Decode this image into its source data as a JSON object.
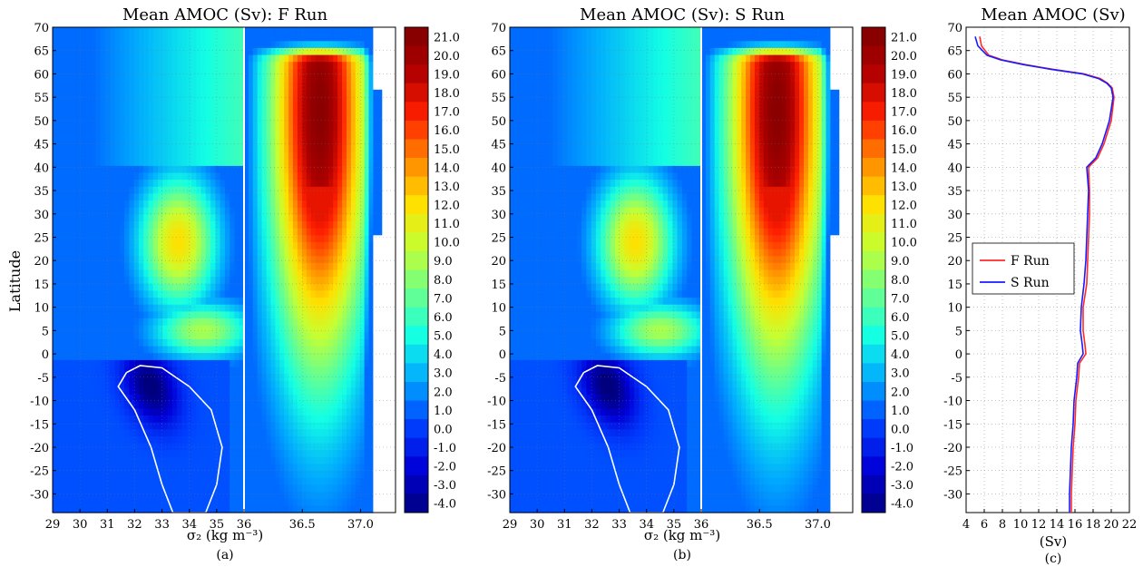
{
  "figure": {
    "panels": [
      {
        "title": "Mean AMOC (Sv): F Run",
        "xlabel": "σ₂ (kg m⁻³)",
        "panel_label": "(a)",
        "ylabel": "Latitude"
      },
      {
        "title": "Mean AMOC (Sv): S Run",
        "xlabel": "σ₂ (kg m⁻³)",
        "panel_label": "(b)"
      },
      {
        "title": "Mean AMOC (Sv)",
        "xlabel": "(Sv)",
        "panel_label": "(c)"
      }
    ],
    "colors": {
      "f_run": "#ff2a2a",
      "s_run": "#1a1aff",
      "colormap": [
        "#00007f",
        "#0000d8",
        "#0040ff",
        "#00a8ff",
        "#13ffe4",
        "#6cff8b",
        "#c4ff33",
        "#ffe000",
        "#ff8600",
        "#ff1e00",
        "#b00000",
        "#7f0000"
      ]
    }
  },
  "chart_data": [
    {
      "type": "heatmap",
      "title": "Mean AMOC (Sv): F Run",
      "xlabel": "σ₂ (kg m⁻³)",
      "ylabel": "Latitude",
      "x_ticks_left": [
        "29",
        "30",
        "31",
        "32",
        "33",
        "34",
        "35",
        "36"
      ],
      "x_ticks_right": [
        "36.5",
        "37.0"
      ],
      "x_axis_note": "split axis: 29–36 linear, then 36–37.3 stretched",
      "y_ticks": [
        "70",
        "65",
        "60",
        "55",
        "50",
        "45",
        "40",
        "35",
        "30",
        "25",
        "20",
        "15",
        "10",
        "5",
        "0",
        "-5",
        "-10",
        "-15",
        "-20",
        "-25",
        "-30"
      ],
      "ylim": [
        -34,
        70
      ],
      "colorbar_ticks": [
        "21.0",
        "20.0",
        "19.0",
        "18.0",
        "17.0",
        "16.0",
        "15.0",
        "14.0",
        "13.0",
        "12.0",
        "11.0",
        "10.0",
        "9.0",
        "8.0",
        "7.0",
        "6.0",
        "5.0",
        "4.0",
        "3.0",
        "2.0",
        "1.0",
        "0.0",
        "-1.0",
        "-2.0",
        "-3.0",
        "-4.0"
      ],
      "colorbar_range": [
        -4.5,
        21.5
      ],
      "features": {
        "deep_max": {
          "sigma2": 36.65,
          "lat": 55,
          "value": 21
        },
        "intermediate_max": {
          "sigma2": 33.8,
          "lat": 30,
          "value": 12
        },
        "southern_min": {
          "sigma2": 32.5,
          "lat": -7,
          "value": -4
        },
        "zero_contour": "white line around negative southern cell"
      }
    },
    {
      "type": "heatmap",
      "title": "Mean AMOC (Sv): S Run",
      "xlabel": "σ₂ (kg m⁻³)",
      "x_ticks_left": [
        "29",
        "30",
        "31",
        "32",
        "33",
        "34",
        "35",
        "36"
      ],
      "x_ticks_right": [
        "36.5",
        "37.0"
      ],
      "y_ticks": [
        "70",
        "65",
        "60",
        "55",
        "50",
        "45",
        "40",
        "35",
        "30",
        "25",
        "20",
        "15",
        "10",
        "5",
        "0",
        "-5",
        "-10",
        "-15",
        "-20",
        "-25",
        "-30"
      ],
      "ylim": [
        -34,
        70
      ],
      "colorbar_ticks": [
        "21.0",
        "20.0",
        "19.0",
        "18.0",
        "17.0",
        "16.0",
        "15.0",
        "14.0",
        "13.0",
        "12.0",
        "11.0",
        "10.0",
        "9.0",
        "8.0",
        "7.0",
        "6.0",
        "5.0",
        "4.0",
        "3.0",
        "2.0",
        "1.0",
        "0.0",
        "-1.0",
        "-2.0",
        "-3.0",
        "-4.0"
      ],
      "colorbar_range": [
        -4.5,
        21.5
      ],
      "features": {
        "deep_max": {
          "sigma2": 36.65,
          "lat": 55,
          "value": 21
        },
        "intermediate_max": {
          "sigma2": 33.8,
          "lat": 30,
          "value": 12
        },
        "southern_min": {
          "sigma2": 32.5,
          "lat": -7,
          "value": -4
        },
        "zero_contour": "white line around negative southern cell"
      }
    },
    {
      "type": "line",
      "title": "Mean AMOC (Sv)",
      "xlabel": "(Sv)",
      "xlim": [
        4,
        22
      ],
      "ylim": [
        -34,
        70
      ],
      "x_ticks": [
        "4",
        "6",
        "8",
        "10",
        "12",
        "14",
        "16",
        "18",
        "20",
        "22"
      ],
      "y_ticks": [
        "70",
        "65",
        "60",
        "55",
        "50",
        "45",
        "40",
        "35",
        "30",
        "25",
        "20",
        "15",
        "10",
        "5",
        "0",
        "-5",
        "-10",
        "-15",
        "-20",
        "-25",
        "-30"
      ],
      "grid": true,
      "legend_position": "center-left",
      "series": [
        {
          "name": "F Run",
          "lat": [
            -34,
            -30,
            -25,
            -20,
            -15,
            -10,
            -5,
            -2,
            0,
            2,
            5,
            10,
            15,
            20,
            25,
            30,
            35,
            40,
            42,
            45,
            50,
            55,
            57,
            58,
            59,
            60,
            61,
            62,
            63,
            64,
            66,
            68
          ],
          "values": [
            15.6,
            15.6,
            15.7,
            15.8,
            16.0,
            16.1,
            16.4,
            16.5,
            17.2,
            17.1,
            16.9,
            16.9,
            17.3,
            17.4,
            17.5,
            17.6,
            17.6,
            17.5,
            18.5,
            19.2,
            20.0,
            20.3,
            20.1,
            19.6,
            18.8,
            17.0,
            13.5,
            10.5,
            8.0,
            6.5,
            5.7,
            5.5
          ]
        },
        {
          "name": "S Run",
          "lat": [
            -34,
            -30,
            -25,
            -20,
            -15,
            -10,
            -5,
            -2,
            0,
            2,
            5,
            10,
            15,
            20,
            25,
            30,
            35,
            40,
            42,
            45,
            50,
            55,
            57,
            58,
            59,
            60,
            61,
            62,
            63,
            64,
            66,
            68
          ],
          "values": [
            15.4,
            15.4,
            15.5,
            15.6,
            15.8,
            15.9,
            16.2,
            16.3,
            16.9,
            16.8,
            16.6,
            16.7,
            17.0,
            17.2,
            17.3,
            17.4,
            17.5,
            17.3,
            18.3,
            19.0,
            19.8,
            20.2,
            20.0,
            19.5,
            18.6,
            16.8,
            13.3,
            10.3,
            7.8,
            6.3,
            5.3,
            5.0
          ]
        }
      ]
    }
  ]
}
